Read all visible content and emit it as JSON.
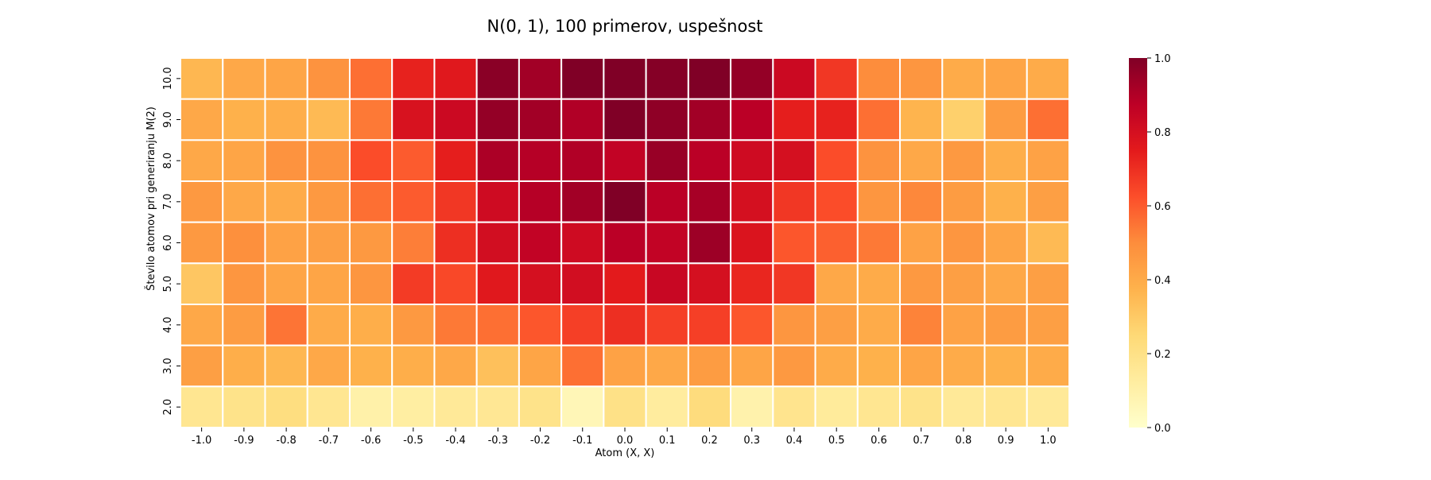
{
  "chart_data": {
    "type": "heatmap",
    "title": "N(0, 1), 100 primerov, uspešnost",
    "xlabel": "Atom (X, X)",
    "ylabel": "Število atomov pri generiranju M(2)",
    "x_categories": [
      "-1.0",
      "-0.9",
      "-0.8",
      "-0.7",
      "-0.6",
      "-0.5",
      "-0.4",
      "-0.3",
      "-0.2",
      "-0.1",
      "0.0",
      "0.1",
      "0.2",
      "0.3",
      "0.4",
      "0.5",
      "0.6",
      "0.7",
      "0.8",
      "0.9",
      "1.0"
    ],
    "y_categories": [
      "10.0",
      "9.0",
      "8.0",
      "7.0",
      "6.0",
      "5.0",
      "4.0",
      "3.0",
      "2.0"
    ],
    "values": [
      [
        0.36,
        0.41,
        0.42,
        0.48,
        0.56,
        0.73,
        0.76,
        0.98,
        0.93,
        1.0,
        1.0,
        0.99,
        1.0,
        0.96,
        0.83,
        0.68,
        0.5,
        0.47,
        0.4,
        0.42,
        0.4
      ],
      [
        0.41,
        0.38,
        0.39,
        0.35,
        0.54,
        0.79,
        0.83,
        0.96,
        0.93,
        0.9,
        1.0,
        0.97,
        0.93,
        0.88,
        0.74,
        0.73,
        0.56,
        0.37,
        0.28,
        0.45,
        0.56
      ],
      [
        0.41,
        0.42,
        0.48,
        0.48,
        0.63,
        0.6,
        0.74,
        0.91,
        0.89,
        0.9,
        0.86,
        0.95,
        0.88,
        0.82,
        0.8,
        0.63,
        0.48,
        0.41,
        0.46,
        0.39,
        0.43
      ],
      [
        0.46,
        0.41,
        0.4,
        0.46,
        0.56,
        0.6,
        0.68,
        0.82,
        0.89,
        0.93,
        1.0,
        0.88,
        0.92,
        0.8,
        0.68,
        0.63,
        0.47,
        0.51,
        0.45,
        0.38,
        0.44
      ],
      [
        0.46,
        0.49,
        0.43,
        0.44,
        0.46,
        0.53,
        0.7,
        0.81,
        0.86,
        0.82,
        0.88,
        0.86,
        0.94,
        0.78,
        0.61,
        0.59,
        0.54,
        0.43,
        0.47,
        0.42,
        0.35
      ],
      [
        0.31,
        0.47,
        0.42,
        0.42,
        0.47,
        0.67,
        0.64,
        0.76,
        0.8,
        0.81,
        0.75,
        0.84,
        0.8,
        0.72,
        0.68,
        0.41,
        0.4,
        0.46,
        0.44,
        0.41,
        0.44
      ],
      [
        0.41,
        0.45,
        0.55,
        0.4,
        0.39,
        0.46,
        0.54,
        0.56,
        0.61,
        0.66,
        0.7,
        0.66,
        0.66,
        0.61,
        0.47,
        0.44,
        0.4,
        0.52,
        0.43,
        0.45,
        0.44
      ],
      [
        0.44,
        0.39,
        0.36,
        0.41,
        0.38,
        0.39,
        0.41,
        0.33,
        0.42,
        0.56,
        0.43,
        0.41,
        0.45,
        0.42,
        0.46,
        0.4,
        0.38,
        0.42,
        0.4,
        0.38,
        0.4
      ],
      [
        0.17,
        0.19,
        0.22,
        0.17,
        0.1,
        0.12,
        0.15,
        0.16,
        0.19,
        0.06,
        0.2,
        0.13,
        0.23,
        0.09,
        0.18,
        0.14,
        0.17,
        0.19,
        0.15,
        0.17,
        0.15
      ]
    ],
    "colorbar": {
      "min": 0.0,
      "max": 1.0,
      "ticks": [
        "0.0",
        "0.2",
        "0.4",
        "0.6",
        "0.8",
        "1.0"
      ]
    },
    "colormap": [
      "#ffffcc",
      "#ffeda0",
      "#fed976",
      "#feb24c",
      "#fd8d3c",
      "#fc4e2a",
      "#e31a1c",
      "#bd0026",
      "#800026"
    ]
  }
}
